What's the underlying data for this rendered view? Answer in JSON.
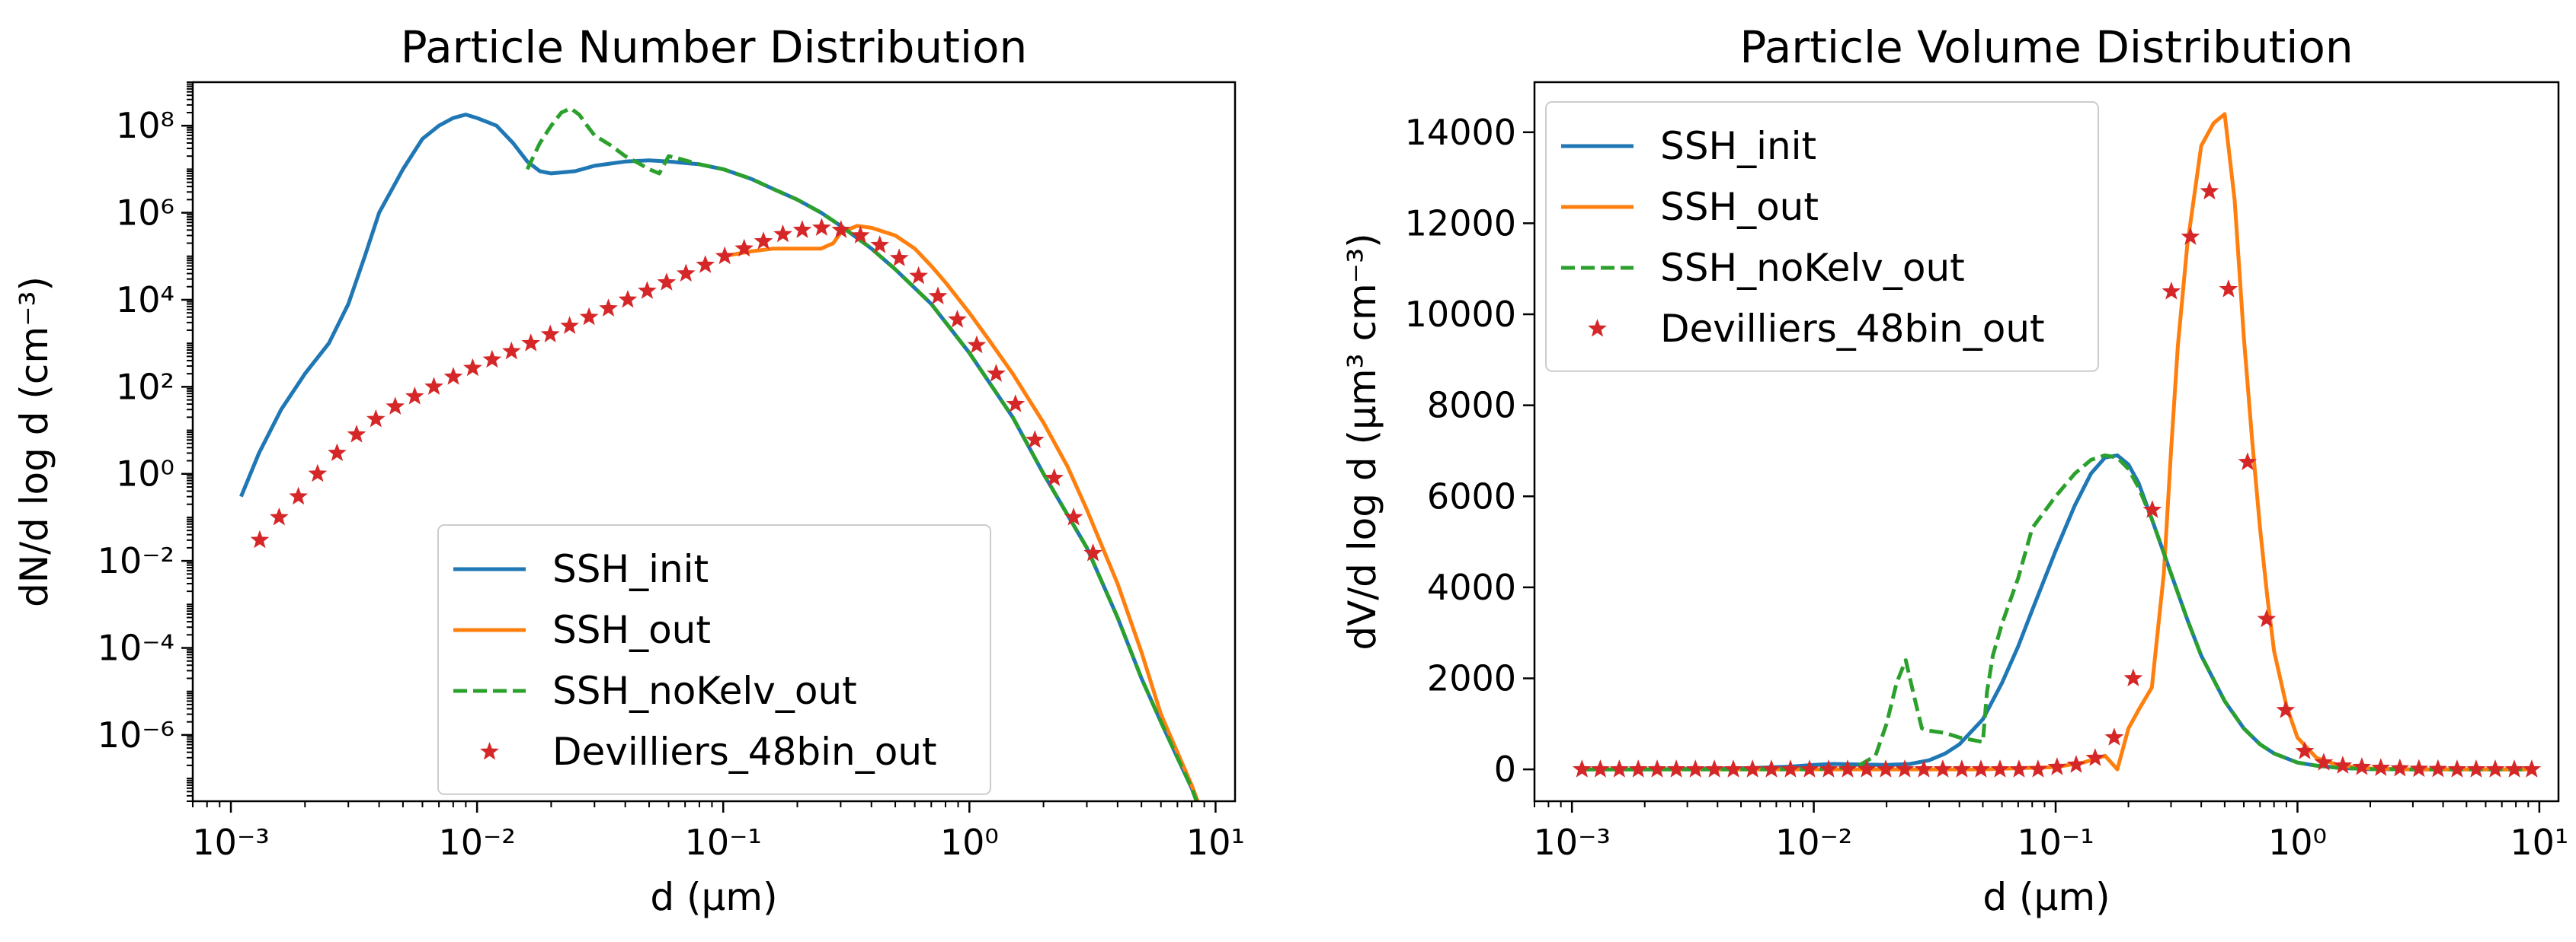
{
  "chart_data": [
    {
      "type": "line",
      "title": "Particle Number Distribution",
      "xlabel": "d (μm)",
      "ylabel": "dN/d log d (cm⁻³)",
      "xscale": "log",
      "yscale": "log",
      "xlim": [
        0.0007,
        12
      ],
      "ylim": [
        3e-08,
        1000000000.0
      ],
      "x_ticks": [
        0.001,
        0.01,
        0.1,
        1,
        10
      ],
      "x_tick_labels": [
        "10⁻³",
        "10⁻²",
        "10⁻¹",
        "10⁰",
        "10¹"
      ],
      "y_ticks": [
        1e-06,
        0.0001,
        0.01,
        1,
        100,
        10000,
        1000000,
        100000000
      ],
      "y_tick_labels": [
        "10⁻⁶",
        "10⁻⁴",
        "10⁻²",
        "10⁰",
        "10²",
        "10⁴",
        "10⁶",
        "10⁸"
      ],
      "legend_position": "lower-center",
      "grid": false,
      "series": [
        {
          "name": "SSH_init",
          "style": "solid",
          "color": "#1f77b4",
          "x": [
            0.0011,
            0.0013,
            0.0016,
            0.002,
            0.0025,
            0.003,
            0.0035,
            0.004,
            0.005,
            0.006,
            0.007,
            0.008,
            0.009,
            0.01,
            0.012,
            0.014,
            0.016,
            0.018,
            0.02,
            0.025,
            0.03,
            0.04,
            0.05,
            0.06,
            0.08,
            0.1,
            0.13,
            0.16,
            0.2,
            0.25,
            0.3,
            0.4,
            0.5,
            0.7,
            1.0,
            1.5,
            2.0,
            3.0,
            4.0,
            5.0,
            6.0,
            7.0,
            8.0,
            9.0
          ],
          "y": [
            0.3,
            3,
            30,
            200,
            1000,
            8000,
            100000,
            1000000,
            10000000,
            50000000,
            100000000,
            150000000,
            180000000,
            150000000,
            100000000,
            40000000,
            15000000,
            9000000,
            8000000,
            9000000,
            12000000,
            15000000,
            16000000,
            15000000,
            13000000,
            10000000,
            6000000,
            3500000,
            2000000,
            1000000,
            500000,
            150000,
            50000,
            8000,
            600,
            20,
            1,
            0.02,
            0.0005,
            2e-05,
            2e-06,
            3e-07,
            6e-08,
            1e-08
          ]
        },
        {
          "name": "SSH_out",
          "style": "solid",
          "color": "#ff7f0e",
          "x": [
            0.1,
            0.13,
            0.16,
            0.2,
            0.25,
            0.28,
            0.3,
            0.35,
            0.4,
            0.5,
            0.6,
            0.7,
            0.8,
            1.0,
            1.2,
            1.5,
            2.0,
            2.5,
            3.0,
            4.0,
            5.0,
            6.0,
            7.0,
            8.0,
            9.0
          ],
          "y": [
            100000,
            130000,
            150000,
            150000,
            150000,
            200000,
            350000,
            500000,
            450000,
            300000,
            150000,
            60000,
            25000,
            5000,
            1200,
            200,
            15,
            1.5,
            0.15,
            0.003,
            8e-05,
            3e-06,
            4e-07,
            7e-08,
            1.2e-08
          ]
        },
        {
          "name": "SSH_noKelv_out",
          "style": "dashed",
          "color": "#2ca02c",
          "x": [
            0.016,
            0.018,
            0.02,
            0.022,
            0.024,
            0.026,
            0.028,
            0.03,
            0.035,
            0.04,
            0.045,
            0.05,
            0.055,
            0.06,
            0.065,
            0.08,
            0.1,
            0.13,
            0.16,
            0.2,
            0.25,
            0.3,
            0.4,
            0.5,
            0.7,
            1.0,
            1.5,
            2.0,
            3.0,
            4.0,
            5.0,
            6.0,
            7.0,
            8.0,
            9.0
          ],
          "y": [
            10000000,
            40000000,
            100000000,
            200000000,
            250000000,
            180000000,
            100000000,
            60000000,
            35000000,
            20000000,
            14000000,
            10000000,
            8000000,
            20000000,
            18000000,
            13000000,
            10000000,
            6000000,
            3500000,
            2000000,
            1000000,
            500000,
            150000,
            50000,
            8000,
            600,
            20,
            1,
            0.02,
            0.0005,
            2e-05,
            2e-06,
            3e-07,
            6e-08,
            1e-08
          ]
        },
        {
          "name": "Devilliers_48bin_out",
          "style": "marker",
          "color": "#d62728",
          "x": [
            0.00131,
            0.00157,
            0.00188,
            0.00225,
            0.0027,
            0.00324,
            0.00388,
            0.00465,
            0.00558,
            0.00668,
            0.00801,
            0.0096,
            0.01151,
            0.0138,
            0.01654,
            0.01983,
            0.02377,
            0.0285,
            0.03416,
            0.04095,
            0.0491,
            0.05886,
            0.07056,
            0.08459,
            0.1014,
            0.1216,
            0.1457,
            0.1747,
            0.2094,
            0.251,
            0.3009,
            0.3608,
            0.4325,
            0.5185,
            0.6215,
            0.7451,
            0.8932,
            1.071,
            1.284,
            1.539,
            1.845,
            2.211,
            2.651,
            3.178
          ],
          "y": [
            0.03,
            0.1,
            0.3,
            1,
            3,
            8,
            18,
            35,
            60,
            100,
            170,
            270,
            420,
            650,
            1000,
            1600,
            2500,
            4000,
            6300,
            10000,
            16000,
            25000,
            40000,
            63000,
            100000,
            150000,
            220000,
            320000,
            400000,
            450000,
            400000,
            300000,
            180000,
            90000,
            35000,
            12000,
            3500,
            900,
            200,
            40,
            6,
            0.8,
            0.1,
            0.015
          ]
        }
      ]
    },
    {
      "type": "line",
      "title": "Particle Volume Distribution",
      "xlabel": "d (μm)",
      "ylabel": "dV/d log d (μm³ cm⁻³)",
      "xscale": "log",
      "yscale": "linear",
      "xlim": [
        0.0007,
        12
      ],
      "ylim": [
        -700,
        15100
      ],
      "x_ticks": [
        0.001,
        0.01,
        0.1,
        1,
        10
      ],
      "x_tick_labels": [
        "10⁻³",
        "10⁻²",
        "10⁻¹",
        "10⁰",
        "10¹"
      ],
      "y_ticks": [
        0,
        2000,
        4000,
        6000,
        8000,
        10000,
        12000,
        14000
      ],
      "y_tick_labels": [
        "0",
        "2000",
        "4000",
        "6000",
        "8000",
        "10000",
        "12000",
        "14000"
      ],
      "legend_position": "upper-left",
      "grid": false,
      "series": [
        {
          "name": "SSH_init",
          "style": "solid",
          "color": "#1f77b4",
          "x": [
            0.0011,
            0.002,
            0.005,
            0.008,
            0.01,
            0.012,
            0.015,
            0.02,
            0.025,
            0.03,
            0.035,
            0.04,
            0.05,
            0.06,
            0.07,
            0.08,
            0.1,
            0.12,
            0.14,
            0.16,
            0.18,
            0.2,
            0.22,
            0.25,
            0.3,
            0.35,
            0.4,
            0.5,
            0.6,
            0.7,
            0.8,
            1.0,
            1.2,
            1.5,
            2.0,
            3.0,
            5.0,
            9.0
          ],
          "y": [
            0,
            0,
            20,
            60,
            100,
            120,
            110,
            100,
            120,
            200,
            350,
            550,
            1100,
            1900,
            2700,
            3500,
            4800,
            5800,
            6500,
            6850,
            6900,
            6700,
            6300,
            5500,
            4300,
            3300,
            2500,
            1500,
            900,
            550,
            350,
            150,
            80,
            30,
            5,
            0,
            0,
            0
          ]
        },
        {
          "name": "SSH_out",
          "style": "solid",
          "color": "#ff7f0e",
          "x": [
            0.0011,
            0.01,
            0.05,
            0.1,
            0.13,
            0.16,
            0.18,
            0.2,
            0.22,
            0.25,
            0.28,
            0.3,
            0.32,
            0.35,
            0.4,
            0.45,
            0.5,
            0.55,
            0.6,
            0.65,
            0.7,
            0.75,
            0.8,
            0.9,
            1.0,
            1.2,
            1.5,
            2.0,
            3.0,
            9.0
          ],
          "y": [
            0,
            0,
            0,
            50,
            150,
            300,
            0,
            900,
            1300,
            1800,
            4300,
            7000,
            9300,
            11500,
            13700,
            14200,
            14400,
            12500,
            9500,
            7200,
            5300,
            3800,
            2600,
            1400,
            700,
            250,
            80,
            20,
            0,
            0
          ]
        },
        {
          "name": "SSH_noKelv_out",
          "style": "dashed",
          "color": "#2ca02c",
          "x": [
            0.0011,
            0.01,
            0.015,
            0.018,
            0.02,
            0.022,
            0.024,
            0.026,
            0.028,
            0.03,
            0.035,
            0.04,
            0.045,
            0.05,
            0.052,
            0.055,
            0.06,
            0.07,
            0.08,
            0.1,
            0.12,
            0.14,
            0.16,
            0.18,
            0.2,
            0.22,
            0.25,
            0.3,
            0.35,
            0.4,
            0.5,
            0.6,
            0.7,
            0.8,
            1.0,
            1.2,
            1.5,
            2.0,
            3.0,
            9.0
          ],
          "y": [
            0,
            0,
            50,
            300,
            1000,
            1900,
            2400,
            1600,
            900,
            850,
            800,
            700,
            650,
            600,
            1700,
            2500,
            3200,
            4200,
            5300,
            6000,
            6500,
            6800,
            6900,
            6850,
            6600,
            6200,
            5500,
            4300,
            3300,
            2500,
            1500,
            900,
            550,
            350,
            150,
            80,
            30,
            5,
            0,
            0
          ]
        },
        {
          "name": "Devilliers_48bin_out",
          "style": "marker",
          "color": "#d62728",
          "x": [
            0.0011,
            0.00131,
            0.00157,
            0.00188,
            0.00225,
            0.0027,
            0.00324,
            0.00388,
            0.00465,
            0.00558,
            0.00668,
            0.00801,
            0.0096,
            0.01151,
            0.0138,
            0.01654,
            0.01983,
            0.02377,
            0.0285,
            0.03416,
            0.04095,
            0.0491,
            0.05886,
            0.07056,
            0.08459,
            0.1014,
            0.1216,
            0.1457,
            0.1747,
            0.2094,
            0.251,
            0.3009,
            0.3608,
            0.4325,
            0.5185,
            0.6215,
            0.7451,
            0.8932,
            1.071,
            1.284,
            1.539,
            1.845,
            2.211,
            2.651,
            3.178,
            3.81,
            4.57,
            5.48,
            6.57,
            7.88,
            9.3
          ],
          "y": [
            0,
            0,
            0,
            0,
            0,
            0,
            0,
            0,
            0,
            0,
            0,
            0,
            0,
            0,
            0,
            0,
            0,
            0,
            0,
            0,
            0,
            0,
            0,
            0,
            0,
            50,
            100,
            250,
            700,
            2000,
            5700,
            10500,
            11700,
            12700,
            10550,
            6750,
            3300,
            1300,
            400,
            150,
            80,
            50,
            30,
            20,
            10,
            5,
            0,
            0,
            0,
            0,
            0
          ]
        }
      ]
    }
  ]
}
